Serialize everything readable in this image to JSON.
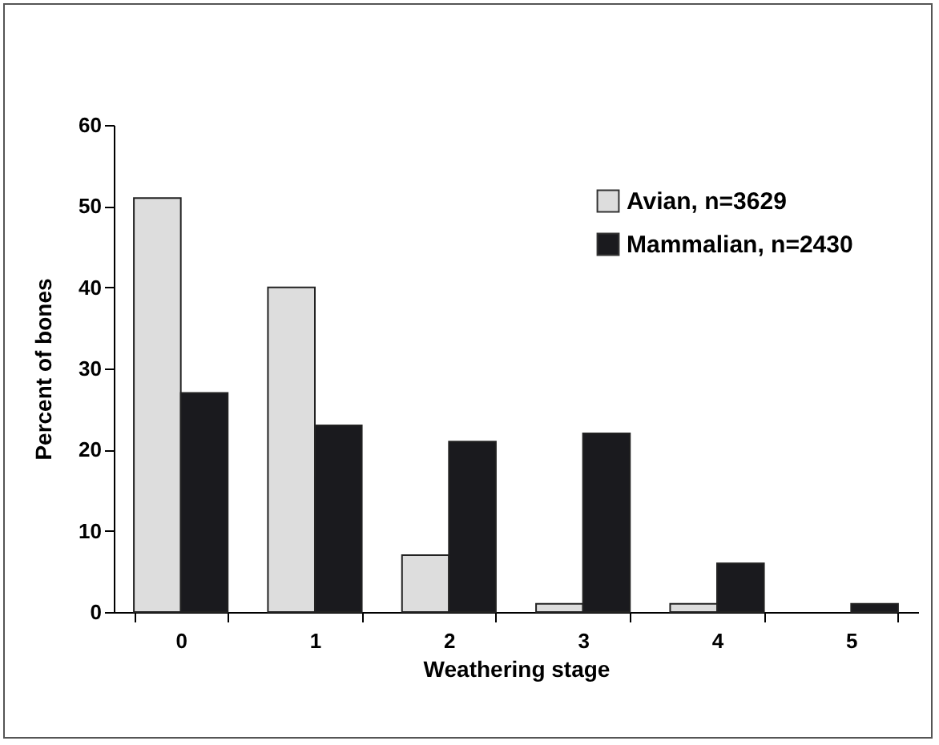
{
  "chart_data": {
    "type": "bar",
    "xlabel": "Weathering stage",
    "ylabel": "Percent of bones",
    "categories": [
      "0",
      "1",
      "2",
      "3",
      "4",
      "5"
    ],
    "series": [
      {
        "name": "Avian, n=3629",
        "color": "#dddddd",
        "values": [
          51,
          40,
          7,
          1,
          1,
          null
        ]
      },
      {
        "name": "Mammalian, n=2430",
        "color": "#1a1a1e",
        "values": [
          27,
          23,
          21,
          22,
          6,
          1
        ]
      }
    ],
    "ylim": [
      0,
      60
    ],
    "yticks": [
      0,
      10,
      20,
      30,
      40,
      50,
      60
    ],
    "grid": false,
    "legend": "top right"
  }
}
